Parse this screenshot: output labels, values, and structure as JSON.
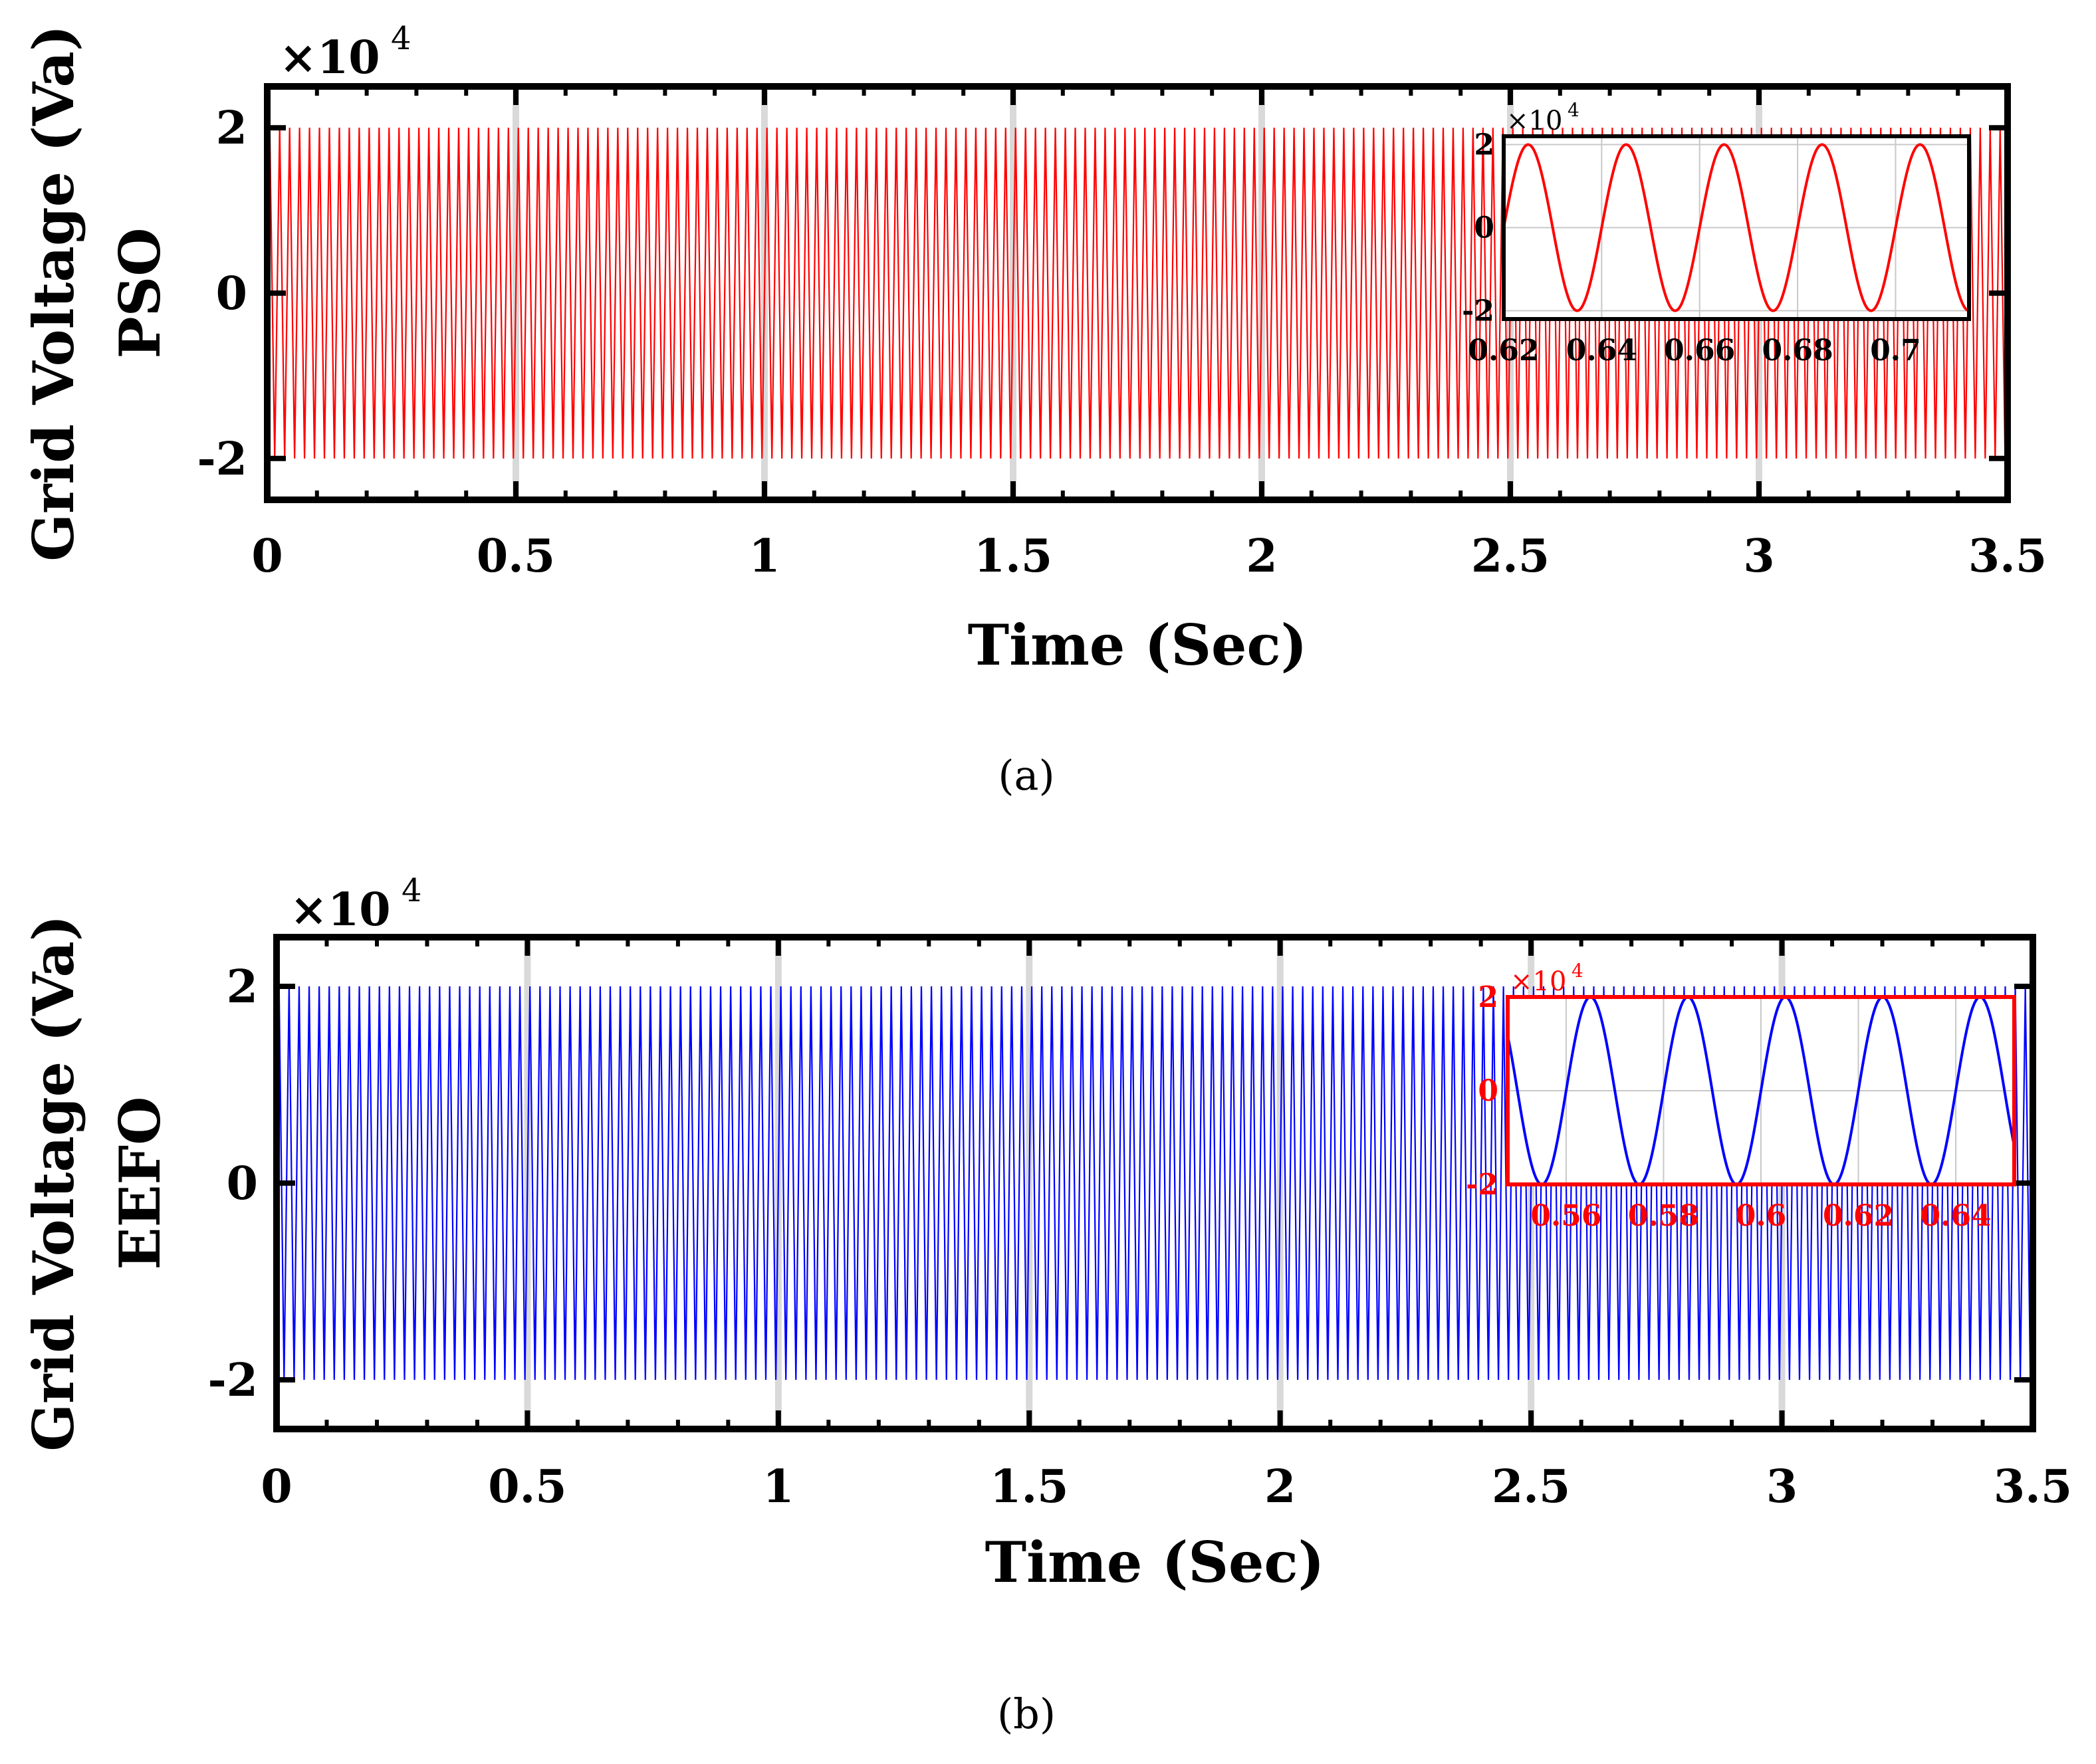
{
  "chart_data": [
    {
      "type": "line",
      "panel_label": "a",
      "title": "",
      "xlabel": "Time (Sec)",
      "ylabel_line1": "Grid Voltage (Va)",
      "ylabel_line2": "PSO",
      "exponent_base": "×10",
      "exponent_power": "4",
      "xlim": [
        0,
        3.5
      ],
      "ylim": [
        -2.5,
        2.5
      ],
      "x_ticks": [
        0,
        0.5,
        1,
        1.5,
        2,
        2.5,
        3,
        3.5
      ],
      "x_tick_labels": [
        "0",
        "0.5",
        "1",
        "1.5",
        "2",
        "2.5",
        "3",
        "3.5"
      ],
      "y_ticks": [
        -2,
        0,
        2
      ],
      "y_tick_labels": [
        "-2",
        "0",
        "2"
      ],
      "series": [
        {
          "name": "Grid Voltage PSO",
          "color": "#ff0000",
          "signal": "sine",
          "amplitude": 2,
          "frequency_hz": 50,
          "unit": "×10^4 V",
          "x_range": [
            0,
            3.5
          ]
        }
      ],
      "inset": {
        "xlim": [
          0.62,
          0.715
        ],
        "ylim": [
          -2.2,
          2.2
        ],
        "x_ticks": [
          0.62,
          0.64,
          0.66,
          0.68,
          0.7
        ],
        "x_tick_labels": [
          "0.62",
          "0.64",
          "0.66",
          "0.68",
          "0.7"
        ],
        "y_ticks": [
          -2,
          0,
          2
        ],
        "y_tick_labels": [
          "-2",
          "0",
          "2"
        ],
        "exponent_base": "×10",
        "exponent_power": "4",
        "line_color": "#ff0000",
        "frame_color": "#000000",
        "label_color": "#000000",
        "grid": true,
        "amplitude": 2,
        "frequency_hz": 50
      }
    },
    {
      "type": "line",
      "panel_label": "b",
      "title": "",
      "xlabel": "Time (Sec)",
      "ylabel_line1": "Grid Voltage (Va)",
      "ylabel_line2": "EEFO",
      "exponent_base": "×10",
      "exponent_power": "4",
      "xlim": [
        0,
        3.5
      ],
      "ylim": [
        -2.5,
        2.5
      ],
      "x_ticks": [
        0,
        0.5,
        1,
        1.5,
        2,
        2.5,
        3,
        3.5
      ],
      "x_tick_labels": [
        "0",
        "0.5",
        "1",
        "1.5",
        "2",
        "2.5",
        "3",
        "3.5"
      ],
      "y_ticks": [
        -2,
        0,
        2
      ],
      "y_tick_labels": [
        "-2",
        "0",
        "2"
      ],
      "series": [
        {
          "name": "Grid Voltage EEFO",
          "color": "#0000ff",
          "signal": "sine",
          "amplitude": 2,
          "frequency_hz": 50,
          "unit": "×10^4 V",
          "x_range": [
            0,
            3.5
          ]
        }
      ],
      "inset": {
        "xlim": [
          0.548,
          0.652
        ],
        "ylim": [
          -2,
          2
        ],
        "x_ticks": [
          0.56,
          0.58,
          0.6,
          0.62,
          0.64
        ],
        "x_tick_labels": [
          "0.56",
          "0.58",
          "0.6",
          "0.62",
          "0.64"
        ],
        "y_ticks": [
          -2,
          0,
          2
        ],
        "y_tick_labels": [
          "-2",
          "0",
          "2"
        ],
        "exponent_base": "×10",
        "exponent_power": "4",
        "line_color": "#0000ff",
        "frame_color": "#ff0000",
        "label_color": "#ff0000",
        "grid": true,
        "amplitude": 2,
        "frequency_hz": 50
      }
    }
  ],
  "captions": [
    "(a)",
    "(b)"
  ]
}
